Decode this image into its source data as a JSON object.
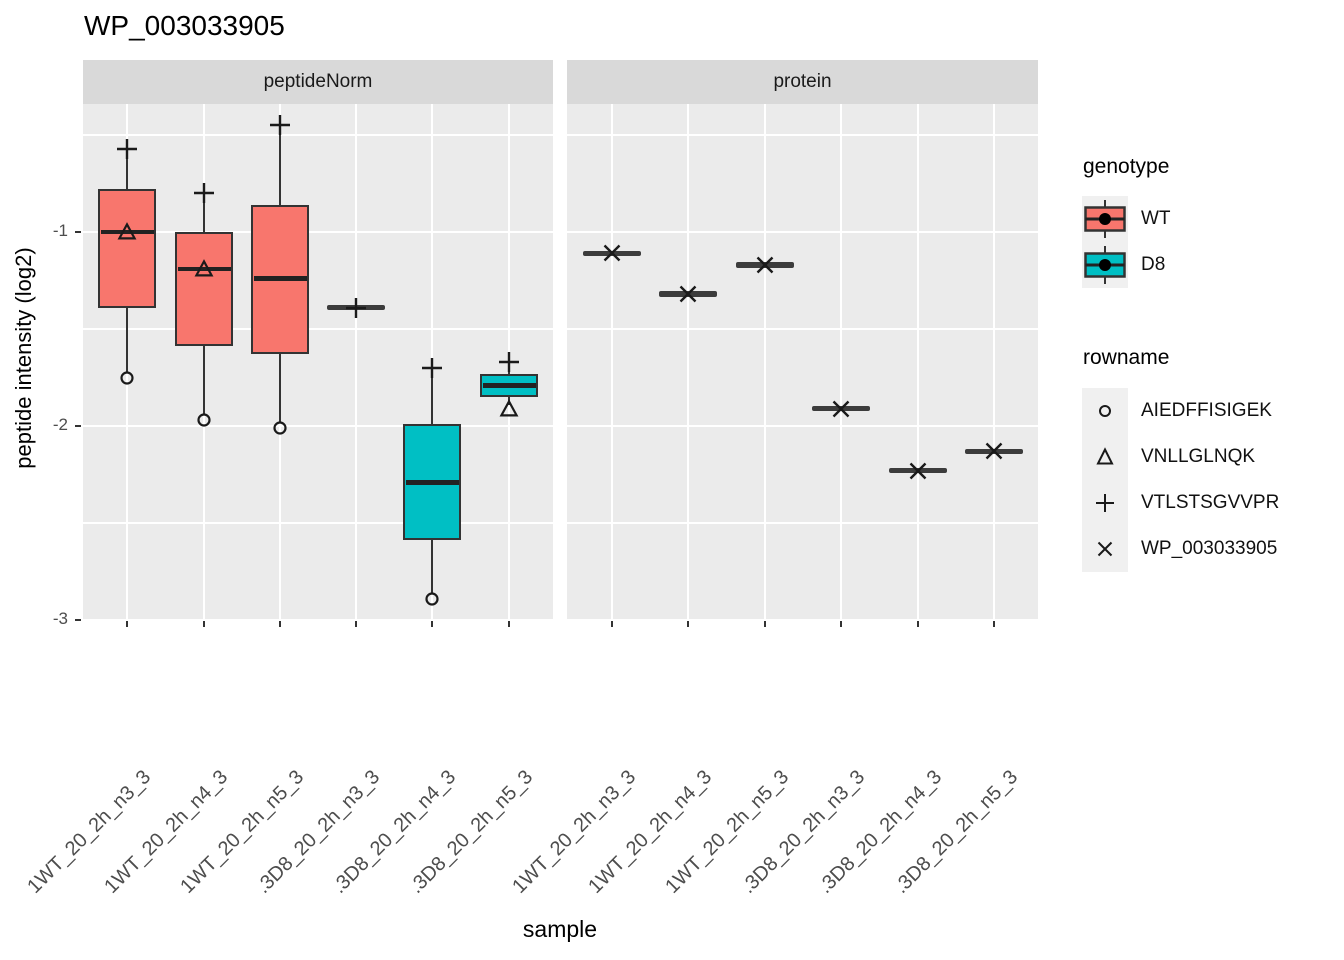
{
  "title": "WP_003033905",
  "y_axis": {
    "label": "peptide intensity (log2)",
    "tick_labels": [
      "-1",
      "-2",
      "-3"
    ]
  },
  "x_axis": {
    "label": "sample"
  },
  "legend": {
    "genotype": {
      "title": "genotype",
      "items": [
        {
          "label": "WT",
          "color": "#F8766D"
        },
        {
          "label": "D8",
          "color": "#00BFC4"
        }
      ]
    },
    "rowname": {
      "title": "rowname",
      "items": [
        {
          "shape": "circle",
          "label": "AIEDFFISIGEK"
        },
        {
          "shape": "triangle",
          "label": "VNLLGLNQK"
        },
        {
          "shape": "plus",
          "label": "VTLSTSGVVPR"
        },
        {
          "shape": "x",
          "label": "WP_003033905"
        }
      ]
    }
  },
  "chart_data": {
    "type": "boxplot",
    "title": "WP_003033905",
    "ylabel": "peptide intensity (log2)",
    "xlabel": "sample",
    "ylim": [
      -3.05,
      -0.35
    ],
    "yticks": [
      -1,
      -2,
      -3
    ],
    "yticks_minor": [
      -0.5,
      -1.5,
      -2.5
    ],
    "grid": "white-on-gray",
    "legend_position": "right",
    "genotype_colors": {
      "WT": "#F8766D",
      "D8": "#00BFC4"
    },
    "categories": [
      "1WT_20_2h_n3_3",
      "1WT_20_2h_n4_3",
      "1WT_20_2h_n5_3",
      ".3D8_20_2h_n3_3",
      ".3D8_20_2h_n4_3",
      ".3D8_20_2h_n5_3"
    ],
    "facets": [
      {
        "label": "peptideNorm",
        "boxes": [
          {
            "genotype": "WT",
            "whisker_low": -1.75,
            "q1": -1.39,
            "median": -1.0,
            "q3": -0.78,
            "whisker_high": -0.6,
            "points": [
              {
                "shape": "circle",
                "value": -1.75
              },
              {
                "shape": "triangle",
                "value": -1.0
              },
              {
                "shape": "plus",
                "value": -0.57
              }
            ]
          },
          {
            "genotype": "WT",
            "whisker_low": -1.97,
            "q1": -1.59,
            "median": -1.19,
            "q3": -1.0,
            "whisker_high": -0.83,
            "points": [
              {
                "shape": "circle",
                "value": -1.97
              },
              {
                "shape": "triangle",
                "value": -1.19
              },
              {
                "shape": "plus",
                "value": -0.8
              }
            ]
          },
          {
            "genotype": "WT",
            "whisker_low": -2.01,
            "q1": -1.63,
            "median": -1.24,
            "q3": -0.86,
            "whisker_high": -0.48,
            "points": [
              {
                "shape": "circle",
                "value": -2.01
              },
              {
                "shape": "plus",
                "value": -0.45
              }
            ]
          },
          {
            "genotype": "D8",
            "flat": true,
            "median": -1.39,
            "points": [
              {
                "shape": "plus",
                "value": -1.39
              }
            ]
          },
          {
            "genotype": "D8",
            "whisker_low": -2.89,
            "q1": -2.59,
            "median": -2.29,
            "q3": -1.99,
            "whisker_high": -1.72,
            "points": [
              {
                "shape": "circle",
                "value": -2.89
              },
              {
                "shape": "plus",
                "value": -1.7
              }
            ]
          },
          {
            "genotype": "D8",
            "whisker_low": -1.89,
            "q1": -1.85,
            "median": -1.79,
            "q3": -1.73,
            "whisker_high": -1.7,
            "points": [
              {
                "shape": "triangle",
                "value": -1.91
              },
              {
                "shape": "plus",
                "value": -1.67
              }
            ]
          }
        ]
      },
      {
        "label": "protein",
        "crossbars": [
          {
            "genotype": "WT",
            "value": -1.11,
            "point_shape": "x"
          },
          {
            "genotype": "WT",
            "value": -1.32,
            "point_shape": "x"
          },
          {
            "genotype": "WT",
            "value": -1.17,
            "point_shape": "x"
          },
          {
            "genotype": "D8",
            "value": -1.91,
            "point_shape": "x"
          },
          {
            "genotype": "D8",
            "value": -2.23,
            "point_shape": "x"
          },
          {
            "genotype": "D8",
            "value": -2.13,
            "point_shape": "x"
          }
        ]
      }
    ]
  }
}
